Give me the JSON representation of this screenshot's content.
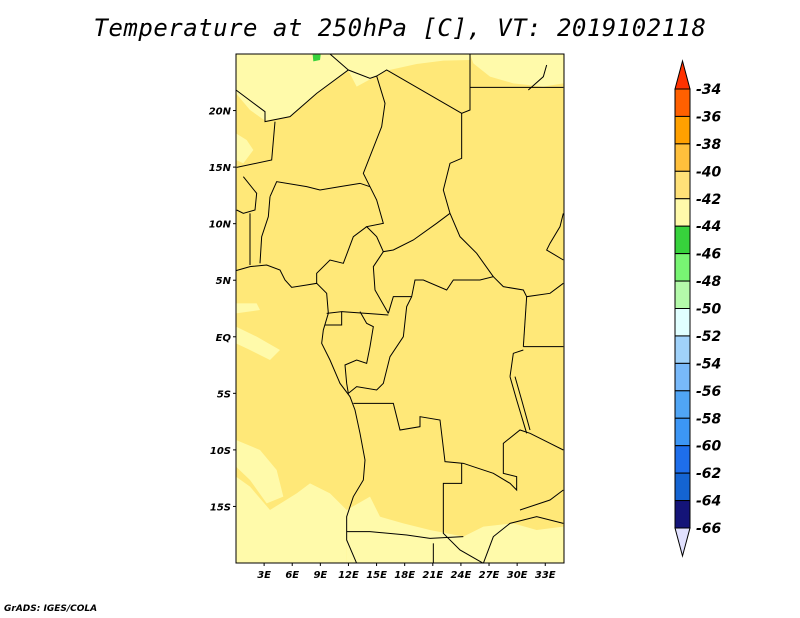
{
  "title": "Temperature at 250hPa [C], VT: 2019102118",
  "credit": "GrADS: IGES/COLA",
  "map": {
    "lon_range_deg": [
      0,
      35
    ],
    "lat_range_deg": [
      -20,
      25
    ],
    "lat_labels": [
      "20N",
      "15N",
      "10N",
      "5N",
      "EQ",
      "5S",
      "10S",
      "15S"
    ],
    "lat_values": [
      20,
      15,
      10,
      5,
      0,
      -5,
      -10,
      -15
    ],
    "lon_labels": [
      "3E",
      "6E",
      "9E",
      "12E",
      "15E",
      "18E",
      "21E",
      "24E",
      "27E",
      "30E",
      "33E"
    ],
    "lon_values": [
      3,
      6,
      9,
      12,
      15,
      18,
      21,
      24,
      27,
      30,
      33
    ],
    "dominant_fill": "#ffe878",
    "light_fill": "#fffaaa",
    "green_patch": "#37d23c"
  },
  "colorbar": {
    "labels": [
      "-34",
      "-36",
      "-38",
      "-40",
      "-42",
      "-44",
      "-46",
      "-48",
      "-50",
      "-52",
      "-54",
      "-56",
      "-58",
      "-60",
      "-62",
      "-64",
      "-66"
    ],
    "top_arrow_color": "#ff3200",
    "bottom_arrow_color": "#e1e1ff",
    "colors_top_to_bottom": [
      "#ff6000",
      "#ffa000",
      "#ffc03c",
      "#ffe178",
      "#fffaaa",
      "#37d23c",
      "#78f573",
      "#b4faaa",
      "#e1ffff",
      "#a0d2fa",
      "#78b9fa",
      "#50a5f5",
      "#3c96f5",
      "#1e6eeb",
      "#1464d2",
      "#141478"
    ]
  }
}
